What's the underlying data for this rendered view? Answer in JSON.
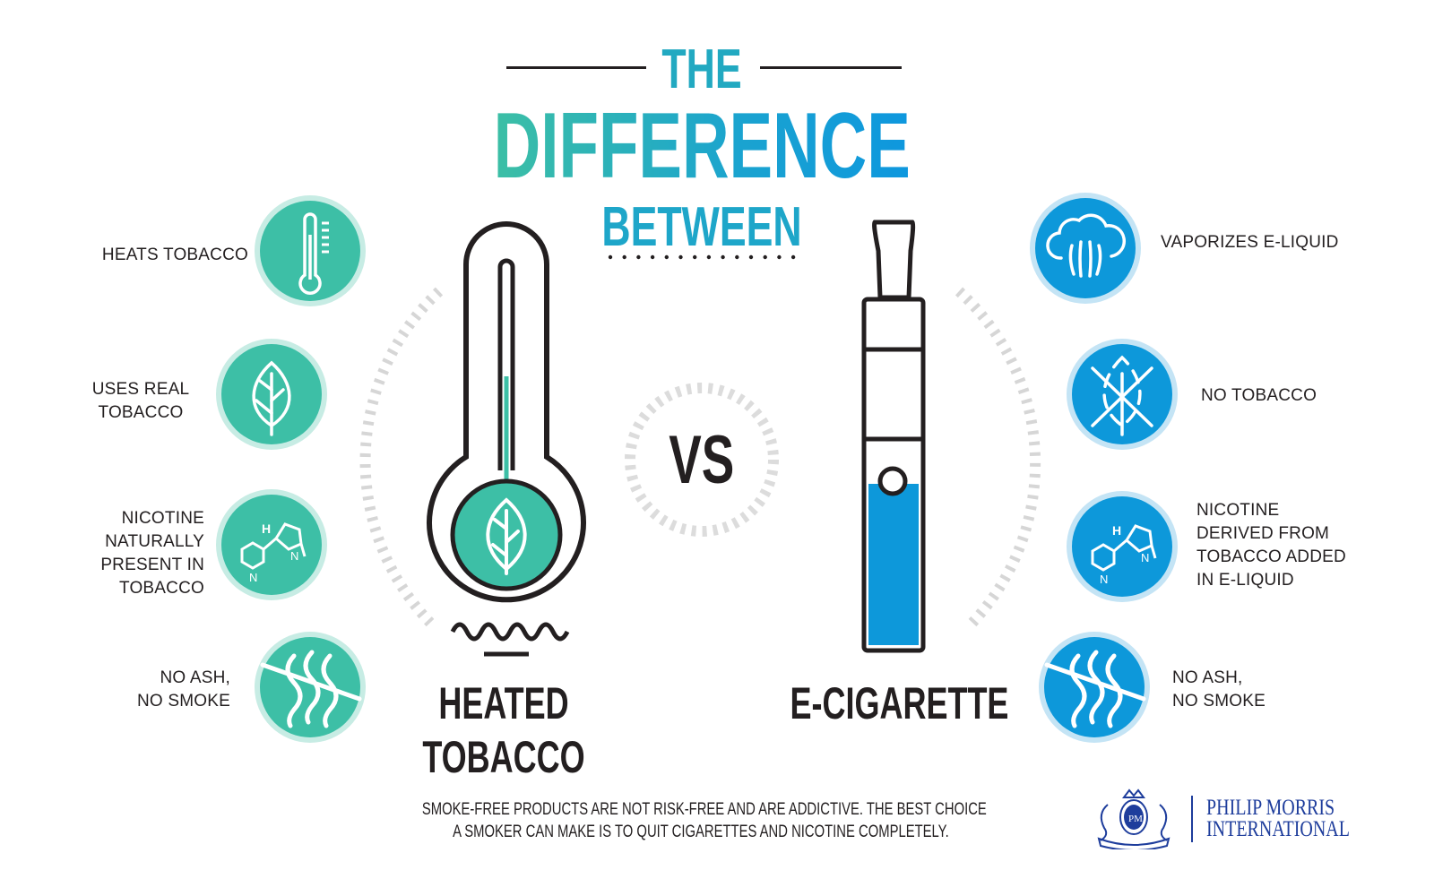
{
  "title": {
    "line1": "THE",
    "line2": "DIFFERENCE",
    "line3": "BETWEEN"
  },
  "vs_label": "VS",
  "left": {
    "name_line1": "HEATED",
    "name_line2": "TOBACCO",
    "color": "#3dbfa6",
    "features": [
      {
        "icon": "thermometer-icon",
        "lines": [
          "HEATS TOBACCO"
        ]
      },
      {
        "icon": "leaf-icon",
        "lines": [
          "USES REAL",
          "TOBACCO"
        ]
      },
      {
        "icon": "nicotine-molecule-icon",
        "lines": [
          "NICOTINE",
          "NATURALLY",
          "PRESENT IN",
          "TOBACCO"
        ]
      },
      {
        "icon": "no-smoke-icon",
        "lines": [
          "NO ASH,",
          "NO SMOKE"
        ]
      }
    ]
  },
  "right": {
    "name": "E-CIGARETTE",
    "color": "#0d98da",
    "features": [
      {
        "icon": "vapor-cloud-icon",
        "lines": [
          "VAPORIZES E-LIQUID"
        ]
      },
      {
        "icon": "no-tobacco-icon",
        "lines": [
          "NO TOBACCO"
        ]
      },
      {
        "icon": "nicotine-molecule-icon",
        "lines": [
          "NICOTINE",
          "DERIVED FROM",
          "TOBACCO ADDED",
          "IN E-LIQUID"
        ]
      },
      {
        "icon": "no-smoke-icon",
        "lines": [
          "NO ASH,",
          "NO SMOKE"
        ]
      }
    ]
  },
  "disclaimer": {
    "line1": "SMOKE-FREE PRODUCTS ARE NOT RISK-FREE AND ARE ADDICTIVE. THE BEST CHOICE",
    "line2": "A SMOKER CAN MAKE IS TO QUIT CIGARETTES AND NICOTINE COMPLETELY."
  },
  "logo": {
    "line1": "PHILIP MORRIS",
    "line2": "INTERNATIONAL",
    "emblem_text": "PHILIP MORRIS INTERNATIONAL",
    "color": "#1e3d9c"
  }
}
